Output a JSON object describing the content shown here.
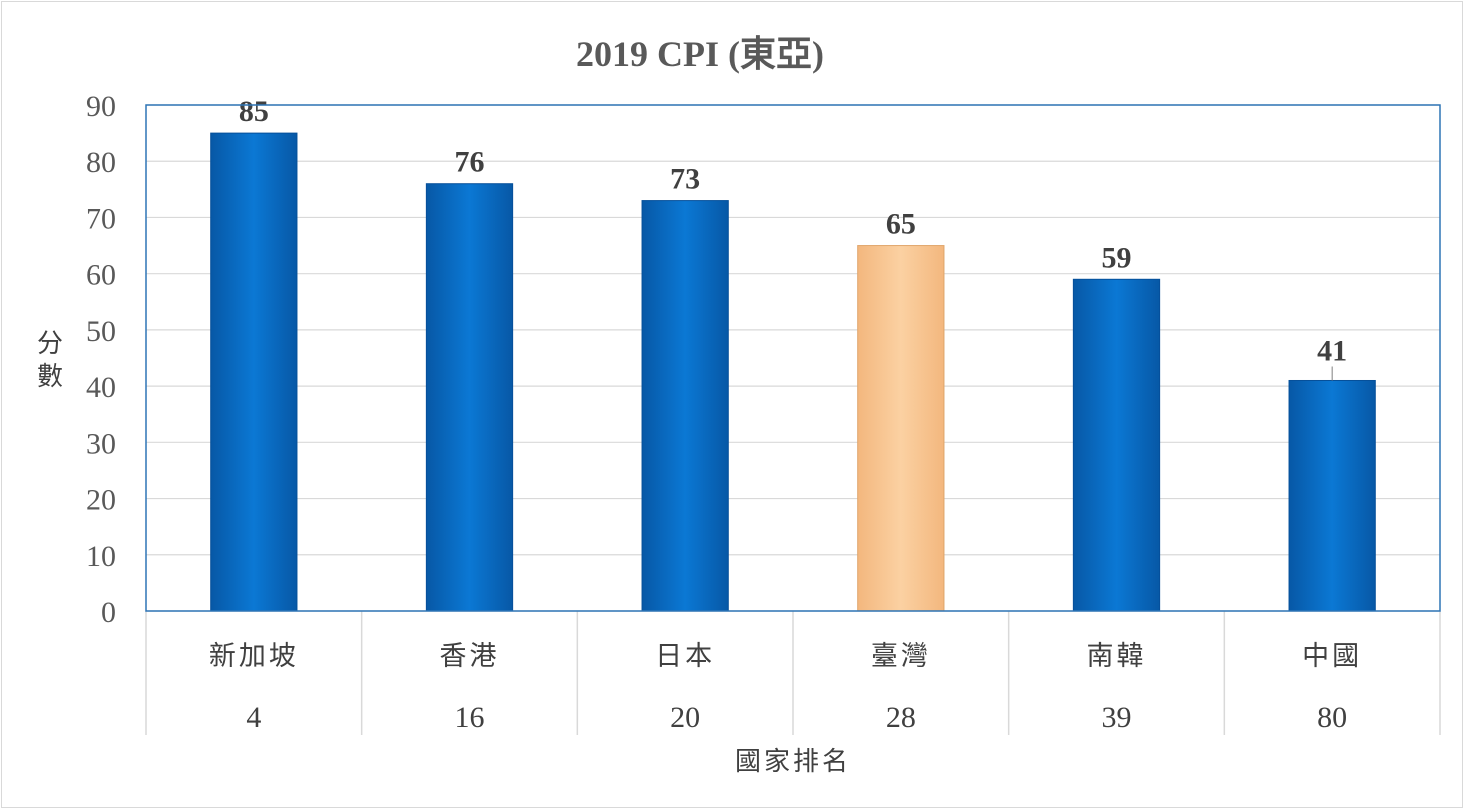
{
  "chart_data": {
    "type": "bar",
    "title": "2019 CPI (東亞)",
    "ylabel": "分數",
    "xlabel": "國家排名",
    "ylim": [
      0,
      90
    ],
    "yticks": [
      0,
      10,
      20,
      30,
      40,
      50,
      60,
      70,
      80,
      90
    ],
    "categories": [
      "新加坡",
      "香港",
      "日本",
      "臺灣",
      "南韓",
      "中國"
    ],
    "ranks": [
      "4",
      "16",
      "20",
      "28",
      "39",
      "80"
    ],
    "values": [
      85,
      76,
      73,
      65,
      59,
      41
    ],
    "data_labels": [
      "85",
      "76",
      "73",
      "65",
      "59",
      "41"
    ],
    "highlight_category": "臺灣",
    "colors": {
      "bar": "#0a6fc9",
      "highlight": "#f9c792",
      "grid": "#d9d9d9",
      "plot_border": "#2e75b6"
    },
    "grid": true,
    "legend": "none"
  }
}
